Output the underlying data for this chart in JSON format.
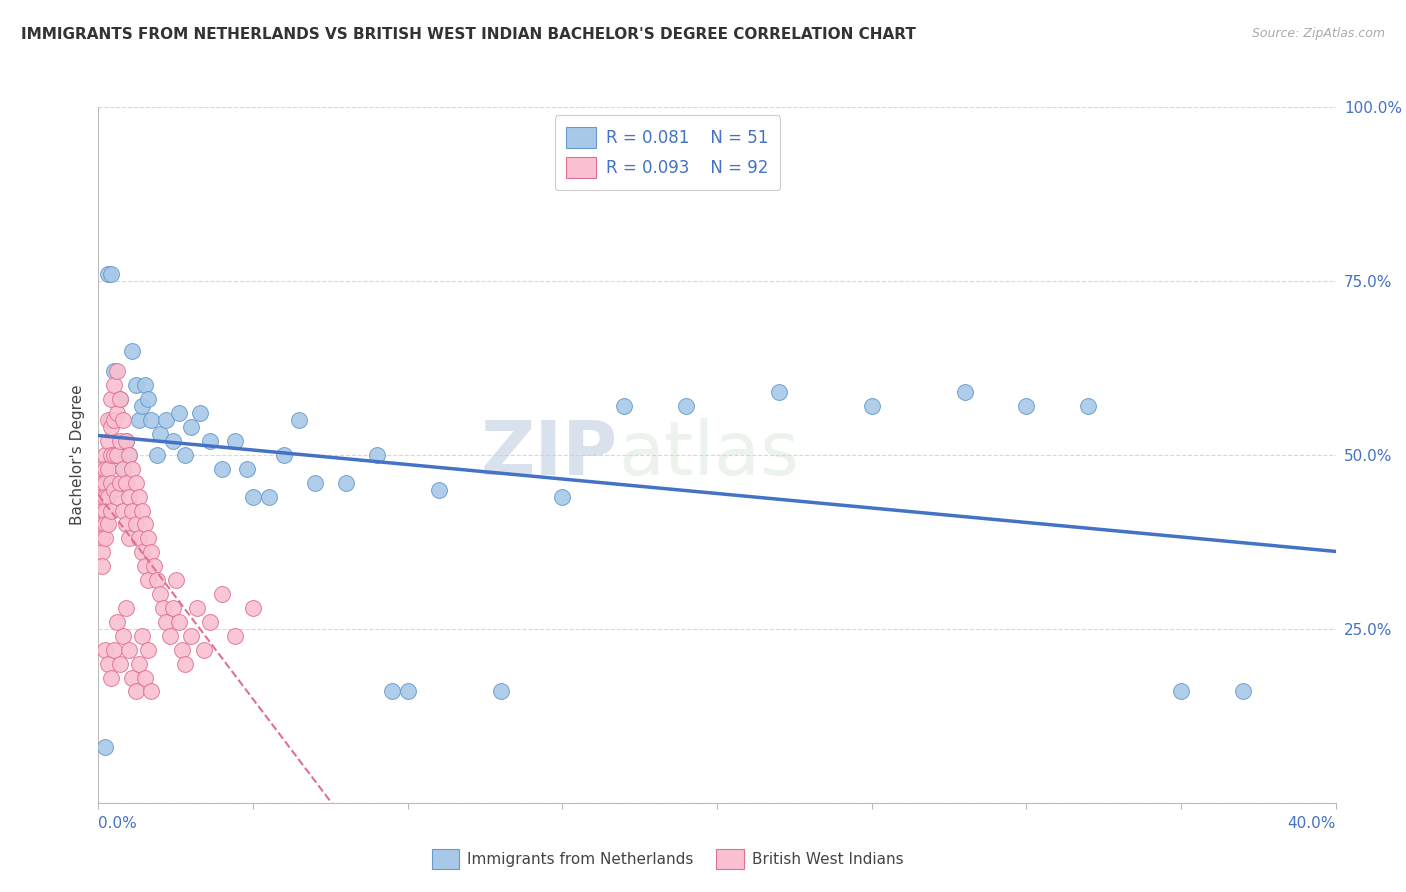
{
  "title": "IMMIGRANTS FROM NETHERLANDS VS BRITISH WEST INDIAN BACHELOR'S DEGREE CORRELATION CHART",
  "source": "Source: ZipAtlas.com",
  "ylabel": "Bachelor's Degree",
  "xlim": [
    0.0,
    0.4
  ],
  "ylim": [
    0.0,
    1.0
  ],
  "background_color": "#ffffff",
  "grid_color": "#d8d8d8",
  "watermark": "ZIPatlas",
  "series": [
    {
      "name": "Immigrants from Netherlands",
      "R": 0.081,
      "N": 51,
      "dot_color": "#a8c8e8",
      "edge_color": "#6699cc",
      "trend_color": "#4472c4",
      "trend_style": "-",
      "trend_lw": 2.5,
      "x": [
        0.002,
        0.003,
        0.004,
        0.005,
        0.006,
        0.007,
        0.008,
        0.009,
        0.01,
        0.011,
        0.012,
        0.013,
        0.014,
        0.015,
        0.016,
        0.017,
        0.019,
        0.02,
        0.022,
        0.024,
        0.026,
        0.028,
        0.03,
        0.033,
        0.036,
        0.04,
        0.044,
        0.048,
        0.055,
        0.06,
        0.065,
        0.07,
        0.08,
        0.09,
        0.095,
        0.1,
        0.11,
        0.13,
        0.15,
        0.17,
        0.19,
        0.22,
        0.25,
        0.28,
        0.3,
        0.32,
        0.35,
        0.37,
        0.003,
        0.004,
        0.05
      ],
      "y": [
        0.08,
        0.46,
        0.55,
        0.62,
        0.5,
        0.58,
        0.48,
        0.52,
        0.5,
        0.65,
        0.6,
        0.55,
        0.57,
        0.6,
        0.58,
        0.55,
        0.5,
        0.53,
        0.55,
        0.52,
        0.56,
        0.5,
        0.54,
        0.56,
        0.52,
        0.48,
        0.52,
        0.48,
        0.44,
        0.5,
        0.55,
        0.46,
        0.46,
        0.5,
        0.16,
        0.16,
        0.45,
        0.16,
        0.44,
        0.57,
        0.57,
        0.59,
        0.57,
        0.59,
        0.57,
        0.57,
        0.16,
        0.16,
        0.76,
        0.76,
        0.44
      ]
    },
    {
      "name": "British West Indians",
      "R": 0.093,
      "N": 92,
      "dot_color": "#f8c0d0",
      "edge_color": "#e07090",
      "trend_color": "#e07090",
      "trend_style": "--",
      "trend_lw": 1.5,
      "x": [
        0.001,
        0.001,
        0.001,
        0.001,
        0.001,
        0.001,
        0.001,
        0.001,
        0.002,
        0.002,
        0.002,
        0.002,
        0.002,
        0.002,
        0.002,
        0.003,
        0.003,
        0.003,
        0.003,
        0.003,
        0.004,
        0.004,
        0.004,
        0.004,
        0.004,
        0.005,
        0.005,
        0.005,
        0.005,
        0.006,
        0.006,
        0.006,
        0.006,
        0.007,
        0.007,
        0.007,
        0.008,
        0.008,
        0.008,
        0.009,
        0.009,
        0.009,
        0.01,
        0.01,
        0.01,
        0.011,
        0.011,
        0.012,
        0.012,
        0.013,
        0.013,
        0.014,
        0.014,
        0.015,
        0.015,
        0.016,
        0.016,
        0.017,
        0.018,
        0.019,
        0.02,
        0.021,
        0.022,
        0.023,
        0.024,
        0.025,
        0.026,
        0.027,
        0.028,
        0.03,
        0.032,
        0.034,
        0.036,
        0.04,
        0.044,
        0.05,
        0.002,
        0.003,
        0.004,
        0.005,
        0.006,
        0.007,
        0.008,
        0.009,
        0.01,
        0.011,
        0.012,
        0.013,
        0.014,
        0.015,
        0.016,
        0.017
      ],
      "y": [
        0.48,
        0.46,
        0.44,
        0.42,
        0.4,
        0.38,
        0.36,
        0.34,
        0.5,
        0.48,
        0.46,
        0.44,
        0.42,
        0.4,
        0.38,
        0.55,
        0.52,
        0.48,
        0.44,
        0.4,
        0.58,
        0.54,
        0.5,
        0.46,
        0.42,
        0.6,
        0.55,
        0.5,
        0.45,
        0.62,
        0.56,
        0.5,
        0.44,
        0.58,
        0.52,
        0.46,
        0.55,
        0.48,
        0.42,
        0.52,
        0.46,
        0.4,
        0.5,
        0.44,
        0.38,
        0.48,
        0.42,
        0.46,
        0.4,
        0.44,
        0.38,
        0.42,
        0.36,
        0.4,
        0.34,
        0.38,
        0.32,
        0.36,
        0.34,
        0.32,
        0.3,
        0.28,
        0.26,
        0.24,
        0.28,
        0.32,
        0.26,
        0.22,
        0.2,
        0.24,
        0.28,
        0.22,
        0.26,
        0.3,
        0.24,
        0.28,
        0.22,
        0.2,
        0.18,
        0.22,
        0.26,
        0.2,
        0.24,
        0.28,
        0.22,
        0.18,
        0.16,
        0.2,
        0.24,
        0.18,
        0.22,
        0.16
      ]
    }
  ]
}
